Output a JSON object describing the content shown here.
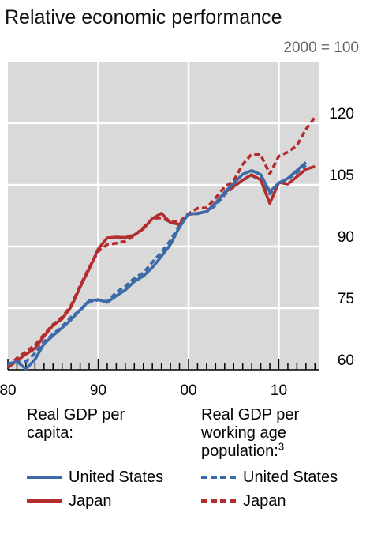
{
  "title": "Relative economic performance",
  "units": "2000 = 100",
  "colors": {
    "us": "#3d6aa8",
    "japan": "#b32d2e",
    "plot_bg": "#d9d9d9",
    "grid": "#ffffff"
  },
  "legend": {
    "group1_title": "Real GDP per capita:",
    "group2_title": "Real GDP per working age population:",
    "group2_footnote": "3",
    "us": "United States",
    "japan": "Japan"
  },
  "chart_data": {
    "type": "line",
    "title": "Relative economic performance",
    "ylabel": "2000 = 100",
    "xlabel": "",
    "xlim": [
      1980,
      2014.5
    ],
    "ylim": [
      60,
      135
    ],
    "y_ticks": [
      60,
      75,
      90,
      105,
      120
    ],
    "y_tick_labels": [
      "60",
      "75",
      "90",
      "105",
      "120"
    ],
    "x_ticks": [
      1980,
      1990,
      2000,
      2010
    ],
    "x_tick_labels": [
      "80",
      "90",
      "00",
      "10"
    ],
    "grid": true,
    "series": [
      {
        "name": "United States",
        "group": "Real GDP per capita",
        "style": "solid",
        "color": "#3d6aa8",
        "points": [
          [
            1980,
            61.4
          ],
          [
            1981,
            62.0
          ],
          [
            1982,
            60.2
          ],
          [
            1983,
            62.5
          ],
          [
            1984,
            66.3
          ],
          [
            1985,
            68.3
          ],
          [
            1986,
            70.2
          ],
          [
            1987,
            72.2
          ],
          [
            1988,
            74.6
          ],
          [
            1989,
            76.8
          ],
          [
            1990,
            77.1
          ],
          [
            1991,
            76.4
          ],
          [
            1992,
            78.0
          ],
          [
            1993,
            79.4
          ],
          [
            1994,
            81.5
          ],
          [
            1995,
            82.8
          ],
          [
            1996,
            84.9
          ],
          [
            1997,
            87.6
          ],
          [
            1998,
            90.5
          ],
          [
            1999,
            94.7
          ],
          [
            2000,
            98.0
          ],
          [
            2001,
            98.0
          ],
          [
            2002,
            98.5
          ],
          [
            2003,
            100.5
          ],
          [
            2004,
            103.2
          ],
          [
            2005,
            105.4
          ],
          [
            2006,
            107.6
          ],
          [
            2007,
            108.5
          ],
          [
            2008,
            107.5
          ],
          [
            2009,
            103.3
          ],
          [
            2010,
            105.5
          ],
          [
            2011,
            106.6
          ],
          [
            2012,
            108.5
          ],
          [
            2013,
            110.5
          ]
        ]
      },
      {
        "name": "Japan",
        "group": "Real GDP per capita",
        "style": "solid",
        "color": "#b32d2e",
        "points": [
          [
            1980,
            60.5
          ],
          [
            1981,
            62.2
          ],
          [
            1982,
            63.8
          ],
          [
            1983,
            65.2
          ],
          [
            1984,
            68.2
          ],
          [
            1985,
            70.8
          ],
          [
            1986,
            72.4
          ],
          [
            1987,
            75.3
          ],
          [
            1988,
            80.1
          ],
          [
            1989,
            84.5
          ],
          [
            1990,
            89.4
          ],
          [
            1991,
            92.1
          ],
          [
            1992,
            92.3
          ],
          [
            1993,
            92.2
          ],
          [
            1994,
            92.8
          ],
          [
            1995,
            94.3
          ],
          [
            1996,
            96.8
          ],
          [
            1997,
            98.1
          ],
          [
            1998,
            95.8
          ],
          [
            1999,
            95.4
          ],
          [
            2000,
            97.8
          ],
          [
            2001,
            98.1
          ],
          [
            2002,
            98.5
          ],
          [
            2003,
            100.6
          ],
          [
            2004,
            103.2
          ],
          [
            2005,
            104.6
          ],
          [
            2006,
            106.2
          ],
          [
            2007,
            107.5
          ],
          [
            2008,
            106.2
          ],
          [
            2009,
            100.5
          ],
          [
            2010,
            105.6
          ],
          [
            2011,
            105.2
          ],
          [
            2012,
            107.0
          ],
          [
            2013,
            108.8
          ],
          [
            2014,
            109.5
          ]
        ]
      },
      {
        "name": "United States",
        "group": "Real GDP per working age population",
        "style": "dashed",
        "color": "#3d6aa8",
        "points": [
          [
            1980,
            60.8
          ],
          [
            1981,
            61.8
          ],
          [
            1982,
            62.0
          ],
          [
            1983,
            64.0
          ],
          [
            1984,
            66.8
          ],
          [
            1985,
            68.7
          ],
          [
            1986,
            70.5
          ],
          [
            1987,
            72.8
          ],
          [
            1988,
            74.5
          ],
          [
            1989,
            76.5
          ],
          [
            1990,
            77.0
          ],
          [
            1991,
            76.6
          ],
          [
            1992,
            78.8
          ],
          [
            1993,
            80.3
          ],
          [
            1994,
            82.3
          ],
          [
            1995,
            83.6
          ],
          [
            1996,
            86.2
          ],
          [
            1997,
            88.6
          ],
          [
            1998,
            91.5
          ],
          [
            1999,
            95.2
          ],
          [
            2000,
            98.0
          ],
          [
            2001,
            98.0
          ],
          [
            2002,
            98.5
          ],
          [
            2003,
            100.0
          ],
          [
            2004,
            102.6
          ],
          [
            2005,
            104.5
          ],
          [
            2006,
            106.2
          ],
          [
            2007,
            107.2
          ],
          [
            2008,
            106.4
          ],
          [
            2009,
            102.8
          ],
          [
            2010,
            105.2
          ],
          [
            2011,
            106.4
          ],
          [
            2012,
            108.0
          ],
          [
            2013,
            109.8
          ]
        ]
      },
      {
        "name": "Japan",
        "group": "Real GDP per working age population",
        "style": "dashed",
        "color": "#b32d2e",
        "points": [
          [
            1980,
            60.8
          ],
          [
            1981,
            62.8
          ],
          [
            1982,
            64.4
          ],
          [
            1983,
            66.0
          ],
          [
            1984,
            68.6
          ],
          [
            1985,
            71.0
          ],
          [
            1986,
            72.8
          ],
          [
            1987,
            75.6
          ],
          [
            1988,
            80.5
          ],
          [
            1989,
            84.8
          ],
          [
            1990,
            88.8
          ],
          [
            1991,
            90.5
          ],
          [
            1992,
            90.8
          ],
          [
            1993,
            91.3
          ],
          [
            1994,
            92.7
          ],
          [
            1995,
            94.6
          ],
          [
            1996,
            96.8
          ],
          [
            1997,
            97.0
          ],
          [
            1998,
            96.0
          ],
          [
            1999,
            96.0
          ],
          [
            2000,
            98.0
          ],
          [
            2001,
            99.3
          ],
          [
            2002,
            99.4
          ],
          [
            2003,
            101.8
          ],
          [
            2004,
            104.5
          ],
          [
            2005,
            106.0
          ],
          [
            2006,
            110.0
          ],
          [
            2007,
            112.5
          ],
          [
            2008,
            112.3
          ],
          [
            2009,
            107.7
          ],
          [
            2010,
            112.0
          ],
          [
            2011,
            113.0
          ],
          [
            2012,
            114.6
          ],
          [
            2013,
            118.5
          ],
          [
            2014,
            121.5
          ]
        ]
      }
    ]
  }
}
